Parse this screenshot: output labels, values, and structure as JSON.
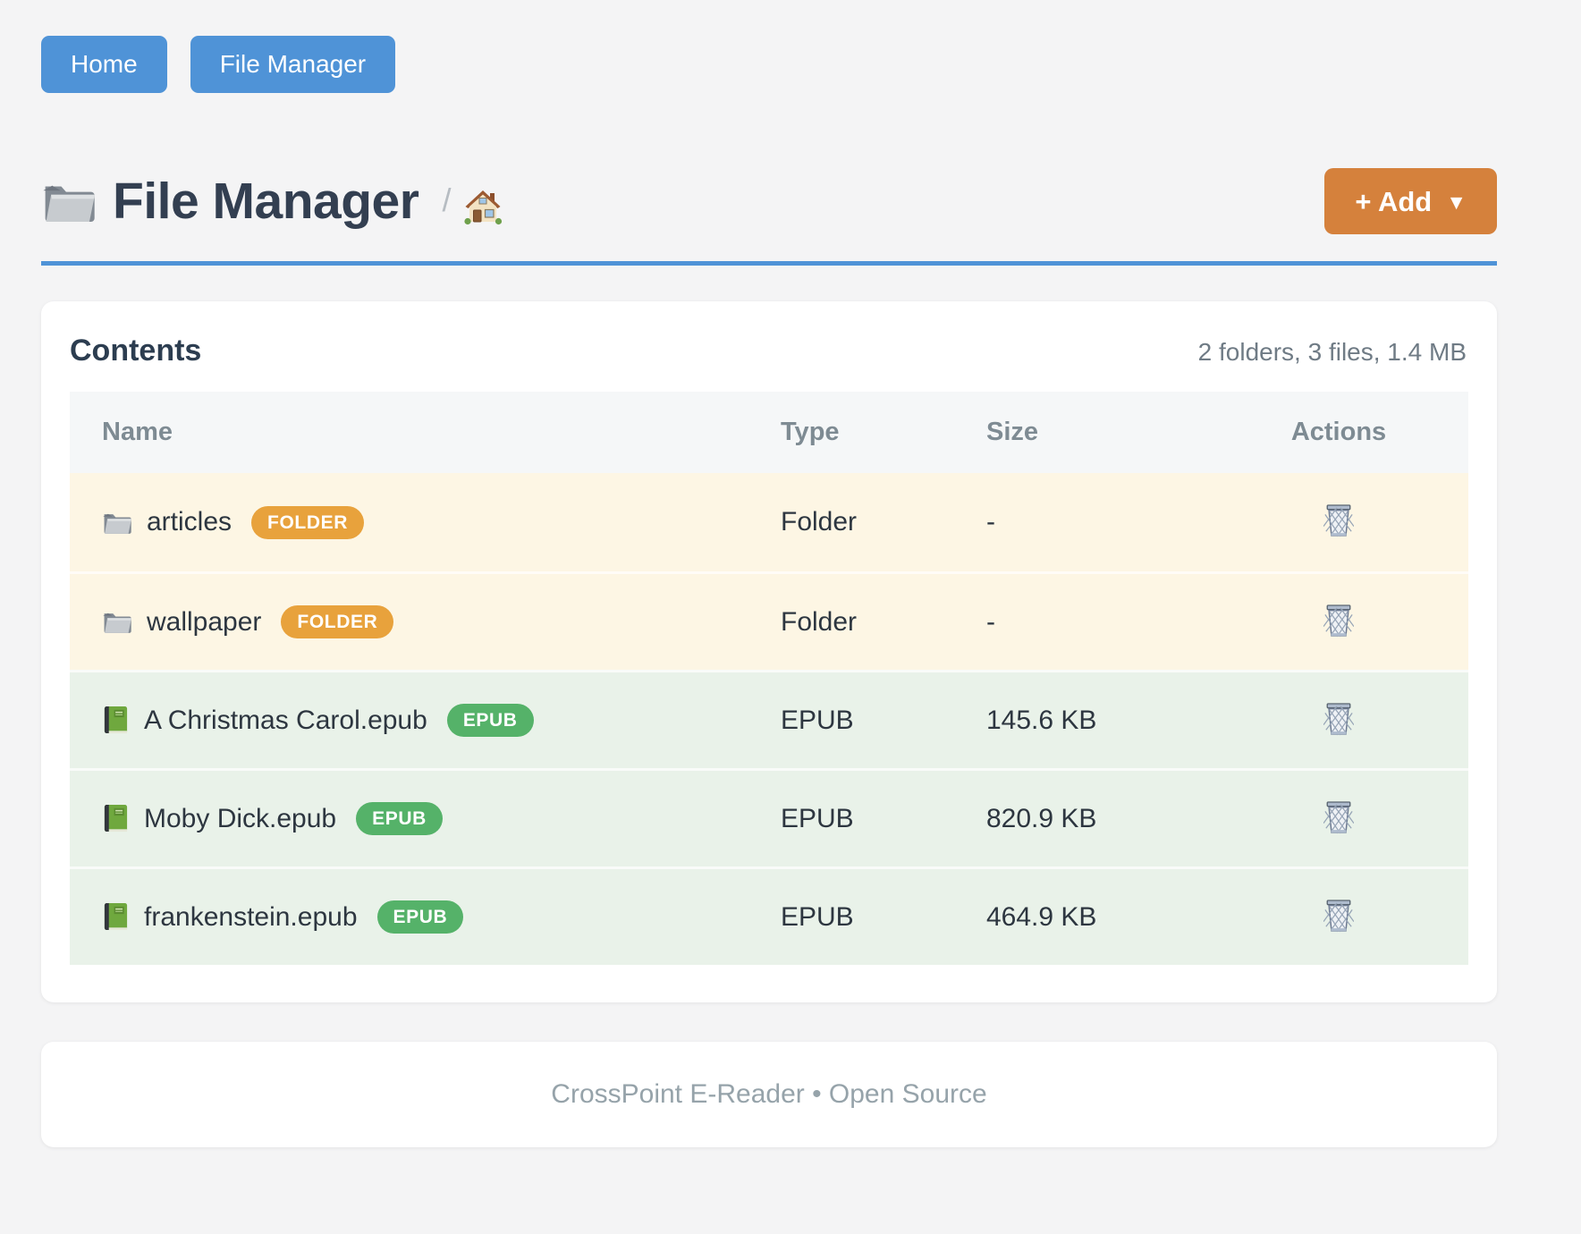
{
  "nav": {
    "buttons": [
      {
        "label": "Home"
      },
      {
        "label": "File Manager"
      }
    ]
  },
  "header": {
    "title": "File Manager",
    "title_icon": "folder-icon",
    "breadcrumb_separator": "/",
    "breadcrumb_home_icon": "home-icon",
    "add_button": {
      "label": "+ Add",
      "caret": "▼"
    }
  },
  "contents": {
    "title": "Contents",
    "summary": "2 folders, 3 files, 1.4 MB",
    "table": {
      "columns": [
        "Name",
        "Type",
        "Size",
        "Actions"
      ],
      "rows": [
        {
          "name": "articles",
          "kind": "folder",
          "badge": "FOLDER",
          "type": "Folder",
          "size": "-",
          "action_icon": "trash-icon"
        },
        {
          "name": "wallpaper",
          "kind": "folder",
          "badge": "FOLDER",
          "type": "Folder",
          "size": "-",
          "action_icon": "trash-icon"
        },
        {
          "name": "A Christmas Carol.epub",
          "kind": "epub",
          "badge": "EPUB",
          "type": "EPUB",
          "size": "145.6 KB",
          "action_icon": "trash-icon"
        },
        {
          "name": "Moby Dick.epub",
          "kind": "epub",
          "badge": "EPUB",
          "type": "EPUB",
          "size": "820.9 KB",
          "action_icon": "trash-icon"
        },
        {
          "name": "frankenstein.epub",
          "kind": "epub",
          "badge": "EPUB",
          "type": "EPUB",
          "size": "464.9 KB",
          "action_icon": "trash-icon"
        }
      ]
    }
  },
  "footer": {
    "text": "CrossPoint E-Reader • Open Source"
  },
  "colors": {
    "page_background": "#f4f4f5",
    "primary_blue": "#4f93d7",
    "add_orange": "#d5813c",
    "badge_folder_orange": "#e8a23c",
    "badge_epub_green": "#55b269",
    "row_folder_bg": "#fdf6e4",
    "row_epub_bg": "#e9f2e9",
    "heading_dark": "#2c3d50"
  }
}
